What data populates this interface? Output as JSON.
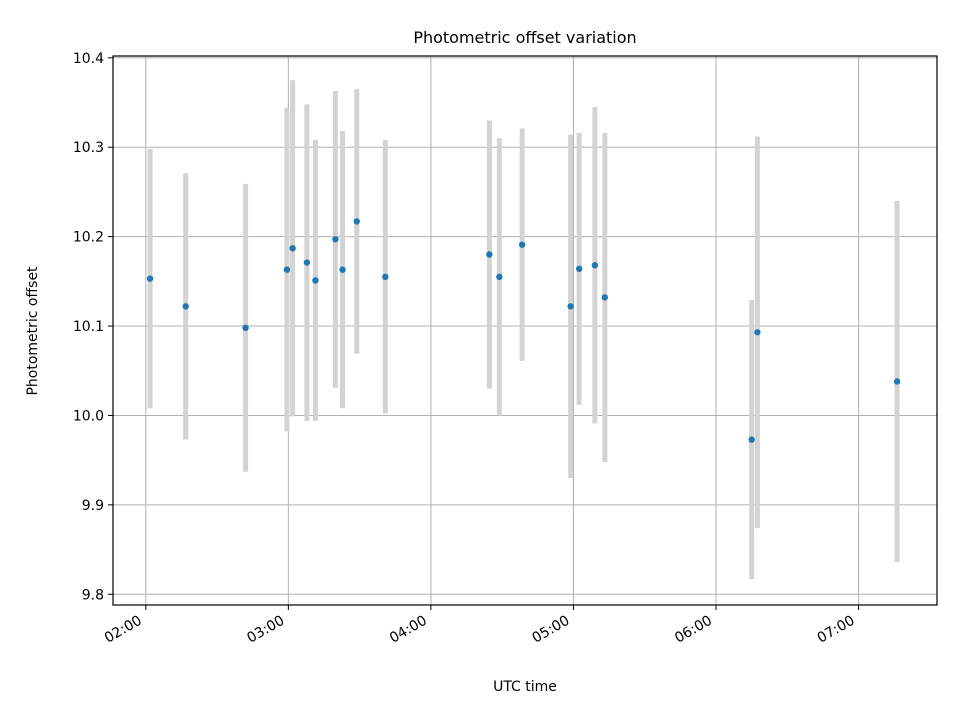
{
  "chart_data": {
    "type": "scatter",
    "title": "Photometric offset variation",
    "xlabel": "UTC time",
    "ylabel": "Photometric offset",
    "grid": true,
    "xlim_hours": [
      1.77,
      7.55
    ],
    "ylim": [
      9.788,
      10.402
    ],
    "x_ticks": [
      {
        "hours": 2,
        "label": "02:00"
      },
      {
        "hours": 3,
        "label": "03:00"
      },
      {
        "hours": 4,
        "label": "04:00"
      },
      {
        "hours": 5,
        "label": "05:00"
      },
      {
        "hours": 6,
        "label": "06:00"
      },
      {
        "hours": 7,
        "label": "07:00"
      }
    ],
    "y_ticks": [
      {
        "value": 9.8,
        "label": "9.8"
      },
      {
        "value": 9.9,
        "label": "9.9"
      },
      {
        "value": 10.0,
        "label": "10.0"
      },
      {
        "value": 10.1,
        "label": "10.1"
      },
      {
        "value": 10.2,
        "label": "10.2"
      },
      {
        "value": 10.3,
        "label": "10.3"
      },
      {
        "value": 10.4,
        "label": "10.4"
      }
    ],
    "marker_color": "#1f77b4",
    "errorbar_color": "#d3d3d3",
    "points": [
      {
        "t": 2.03,
        "y": 10.153,
        "err": 0.145
      },
      {
        "t": 2.28,
        "y": 10.122,
        "err": 0.149
      },
      {
        "t": 2.7,
        "y": 10.098,
        "err": 0.161
      },
      {
        "t": 2.99,
        "y": 10.163,
        "err": 0.181
      },
      {
        "t": 3.03,
        "y": 10.187,
        "err": 0.188
      },
      {
        "t": 3.13,
        "y": 10.171,
        "err": 0.177
      },
      {
        "t": 3.19,
        "y": 10.151,
        "err": 0.157
      },
      {
        "t": 3.33,
        "y": 10.197,
        "err": 0.166
      },
      {
        "t": 3.38,
        "y": 10.163,
        "err": 0.155
      },
      {
        "t": 3.48,
        "y": 10.217,
        "err": 0.148
      },
      {
        "t": 3.68,
        "y": 10.155,
        "err": 0.153
      },
      {
        "t": 4.41,
        "y": 10.18,
        "err": 0.15
      },
      {
        "t": 4.48,
        "y": 10.155,
        "err": 0.155
      },
      {
        "t": 4.64,
        "y": 10.191,
        "err": 0.13
      },
      {
        "t": 4.98,
        "y": 10.122,
        "err": 0.192
      },
      {
        "t": 5.04,
        "y": 10.164,
        "err": 0.152
      },
      {
        "t": 5.15,
        "y": 10.168,
        "err": 0.177
      },
      {
        "t": 5.22,
        "y": 10.132,
        "err": 0.184
      },
      {
        "t": 6.25,
        "y": 9.973,
        "err": 0.156
      },
      {
        "t": 6.29,
        "y": 10.093,
        "err": 0.219
      },
      {
        "t": 7.27,
        "y": 10.038,
        "err": 0.202
      }
    ]
  }
}
